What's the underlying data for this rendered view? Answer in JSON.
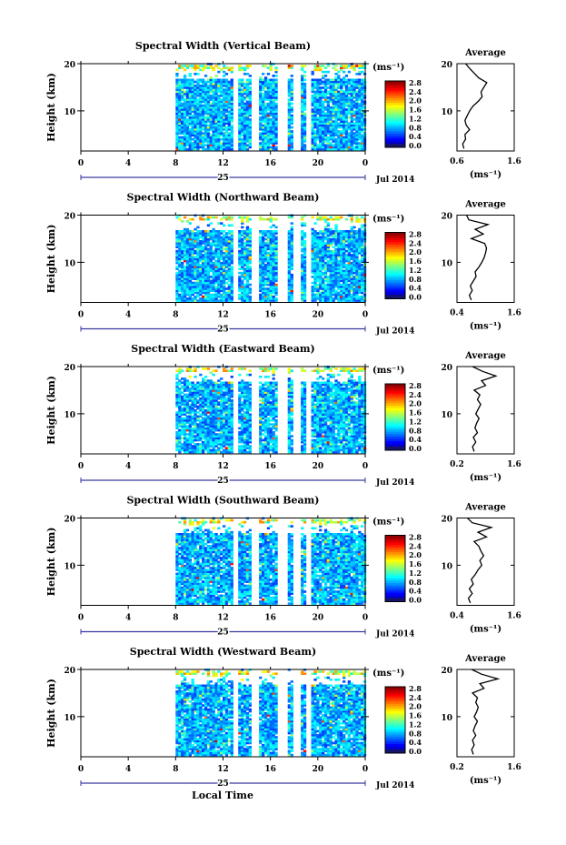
{
  "figure": {
    "x_axis_label": "Local Time",
    "date_label": "Jul 2014",
    "day_label": "25"
  },
  "chart_data": [
    {
      "type": "heatmap",
      "title": "Spectral Width (Vertical Beam)",
      "xlabel": "Local Time",
      "ylabel": "Height (km)",
      "x_ticks": [
        "0",
        "4",
        "8",
        "12",
        "16",
        "20",
        "0"
      ],
      "y_ticks": [
        "20",
        "10"
      ],
      "xlim": [
        0,
        24
      ],
      "ylim": [
        1.5,
        20
      ],
      "data_time_range": [
        8,
        24
      ],
      "gaps": [
        [
          12.8,
          13.2
        ],
        [
          14.3,
          14.9
        ],
        [
          16.5,
          17.3
        ],
        [
          17.9,
          18.4
        ],
        [
          19.0,
          19.4
        ]
      ],
      "colorbar": {
        "unit": "(ms⁻¹)",
        "ticks": [
          "2.8",
          "2.4",
          "2.0",
          "1.6",
          "1.2",
          "0.8",
          "0.4",
          "0.0"
        ],
        "range": [
          0,
          2.8
        ]
      },
      "average": {
        "title": "Average",
        "xlabel": "(ms⁻¹)",
        "x_ticks": [
          "0.6",
          "1.6"
        ],
        "xlim": [
          0.6,
          1.6
        ],
        "y_ticks": [
          "20",
          "10"
        ],
        "profile": [
          [
            2,
            0.72
          ],
          [
            3,
            0.7
          ],
          [
            4,
            0.75
          ],
          [
            5,
            0.74
          ],
          [
            6,
            0.82
          ],
          [
            7,
            0.76
          ],
          [
            8,
            0.74
          ],
          [
            9,
            0.78
          ],
          [
            10,
            0.82
          ],
          [
            11,
            0.88
          ],
          [
            12,
            0.97
          ],
          [
            13,
            1.04
          ],
          [
            14,
            1.02
          ],
          [
            15,
            1.07
          ],
          [
            16,
            1.12
          ],
          [
            17,
            0.98
          ],
          [
            18,
            0.9
          ],
          [
            19,
            0.82
          ],
          [
            20,
            0.75
          ]
        ]
      }
    },
    {
      "type": "heatmap",
      "title": "Spectral Width (Northward Beam)",
      "xlabel": "Local Time",
      "ylabel": "Height (km)",
      "x_ticks": [
        "0",
        "4",
        "8",
        "12",
        "16",
        "20",
        "0"
      ],
      "y_ticks": [
        "20",
        "10"
      ],
      "xlim": [
        0,
        24
      ],
      "ylim": [
        1.5,
        20
      ],
      "data_time_range": [
        8,
        24
      ],
      "gaps": [
        [
          12.8,
          13.2
        ],
        [
          14.3,
          14.9
        ],
        [
          16.5,
          17.3
        ],
        [
          17.9,
          18.4
        ],
        [
          19.0,
          19.4
        ]
      ],
      "colorbar": {
        "unit": "(ms⁻¹)",
        "ticks": [
          "2.8",
          "2.4",
          "2.0",
          "1.6",
          "1.2",
          "0.8",
          "0.4",
          "0.0"
        ],
        "range": [
          0,
          2.8
        ]
      },
      "average": {
        "title": "Average",
        "xlabel": "(ms⁻¹)",
        "x_ticks": [
          "0.4",
          "1.6"
        ],
        "xlim": [
          0.4,
          1.6
        ],
        "y_ticks": [
          "20",
          "10"
        ],
        "profile": [
          [
            2,
            0.7
          ],
          [
            3,
            0.66
          ],
          [
            4,
            0.72
          ],
          [
            5,
            0.68
          ],
          [
            6,
            0.74
          ],
          [
            7,
            0.8
          ],
          [
            8,
            0.78
          ],
          [
            9,
            0.86
          ],
          [
            10,
            0.92
          ],
          [
            11,
            0.97
          ],
          [
            12,
            1.0
          ],
          [
            13,
            1.02
          ],
          [
            14,
            0.98
          ],
          [
            15,
            0.7
          ],
          [
            16,
            0.95
          ],
          [
            17,
            0.78
          ],
          [
            18,
            1.05
          ],
          [
            19,
            0.65
          ],
          [
            20,
            0.6
          ]
        ]
      }
    },
    {
      "type": "heatmap",
      "title": "Spectral Width (Eastward Beam)",
      "xlabel": "Local Time",
      "ylabel": "Height (km)",
      "x_ticks": [
        "0",
        "4",
        "8",
        "12",
        "16",
        "20",
        "0"
      ],
      "y_ticks": [
        "20",
        "10"
      ],
      "xlim": [
        0,
        24
      ],
      "ylim": [
        1.5,
        20
      ],
      "data_time_range": [
        8,
        24
      ],
      "gaps": [
        [
          12.8,
          13.2
        ],
        [
          14.3,
          14.9
        ],
        [
          16.5,
          17.3
        ],
        [
          17.9,
          18.4
        ],
        [
          19.0,
          19.4
        ]
      ],
      "colorbar": {
        "unit": "(ms⁻¹)",
        "ticks": [
          "2.8",
          "2.4",
          "2.0",
          "1.6",
          "1.2",
          "0.8",
          "0.4",
          "0.0"
        ],
        "range": [
          0,
          2.8
        ]
      },
      "average": {
        "title": "Average",
        "xlabel": "(ms⁻¹)",
        "x_ticks": [
          "0.2",
          "1.6"
        ],
        "xlim": [
          0.2,
          1.6
        ],
        "y_ticks": [
          "20",
          "10"
        ],
        "profile": [
          [
            2,
            0.62
          ],
          [
            3,
            0.58
          ],
          [
            4,
            0.66
          ],
          [
            5,
            0.6
          ],
          [
            6,
            0.7
          ],
          [
            7,
            0.64
          ],
          [
            8,
            0.68
          ],
          [
            9,
            0.74
          ],
          [
            10,
            0.66
          ],
          [
            11,
            0.72
          ],
          [
            12,
            0.78
          ],
          [
            13,
            0.7
          ],
          [
            14,
            0.76
          ],
          [
            15,
            0.62
          ],
          [
            16,
            0.9
          ],
          [
            17,
            0.8
          ],
          [
            18,
            1.15
          ],
          [
            19,
            0.82
          ],
          [
            20,
            0.58
          ]
        ]
      }
    },
    {
      "type": "heatmap",
      "title": "Spectral Width (Southward Beam)",
      "xlabel": "Local Time",
      "ylabel": "Height (km)",
      "x_ticks": [
        "0",
        "4",
        "8",
        "12",
        "16",
        "20",
        "0"
      ],
      "y_ticks": [
        "20",
        "10"
      ],
      "xlim": [
        0,
        24
      ],
      "ylim": [
        1.5,
        20
      ],
      "data_time_range": [
        8,
        24
      ],
      "gaps": [
        [
          12.8,
          13.2
        ],
        [
          14.3,
          14.9
        ],
        [
          16.5,
          17.3
        ],
        [
          17.9,
          18.4
        ],
        [
          19.0,
          19.4
        ]
      ],
      "colorbar": {
        "unit": "(ms⁻¹)",
        "ticks": [
          "2.8",
          "2.4",
          "2.0",
          "1.6",
          "1.2",
          "0.8",
          "0.4",
          "0.0"
        ],
        "range": [
          0,
          2.8
        ]
      },
      "average": {
        "title": "Average",
        "xlabel": "(ms⁻¹)",
        "x_ticks": [
          "0.4",
          "1.6"
        ],
        "xlim": [
          0.4,
          1.6
        ],
        "y_ticks": [
          "20",
          "10"
        ],
        "profile": [
          [
            2,
            0.68
          ],
          [
            3,
            0.64
          ],
          [
            4,
            0.72
          ],
          [
            5,
            0.66
          ],
          [
            6,
            0.74
          ],
          [
            7,
            0.7
          ],
          [
            8,
            0.78
          ],
          [
            9,
            0.84
          ],
          [
            10,
            0.92
          ],
          [
            11,
            0.88
          ],
          [
            12,
            0.96
          ],
          [
            13,
            0.9
          ],
          [
            14,
            0.86
          ],
          [
            15,
            0.76
          ],
          [
            16,
            1.02
          ],
          [
            17,
            0.84
          ],
          [
            18,
            1.12
          ],
          [
            19,
            0.72
          ],
          [
            20,
            0.62
          ]
        ]
      }
    },
    {
      "type": "heatmap",
      "title": "Spectral Width (Westward Beam)",
      "xlabel": "Local Time",
      "ylabel": "Height (km)",
      "x_ticks": [
        "0",
        "4",
        "8",
        "12",
        "16",
        "20",
        "0"
      ],
      "y_ticks": [
        "20",
        "10"
      ],
      "xlim": [
        0,
        24
      ],
      "ylim": [
        1.5,
        20
      ],
      "data_time_range": [
        8,
        24
      ],
      "gaps": [
        [
          12.8,
          13.2
        ],
        [
          14.3,
          14.9
        ],
        [
          16.5,
          17.3
        ],
        [
          17.9,
          18.4
        ],
        [
          19.0,
          19.4
        ]
      ],
      "colorbar": {
        "unit": "(ms⁻¹)",
        "ticks": [
          "2.8",
          "2.4",
          "2.0",
          "1.6",
          "1.2",
          "0.8",
          "0.4",
          "0.0"
        ],
        "range": [
          0,
          2.8
        ]
      },
      "average": {
        "title": "Average",
        "xlabel": "(ms⁻¹)",
        "x_ticks": [
          "0.2",
          "1.6"
        ],
        "xlim": [
          0.2,
          1.6
        ],
        "y_ticks": [
          "20",
          "10"
        ],
        "profile": [
          [
            2,
            0.6
          ],
          [
            3,
            0.56
          ],
          [
            4,
            0.62
          ],
          [
            5,
            0.58
          ],
          [
            6,
            0.66
          ],
          [
            7,
            0.6
          ],
          [
            8,
            0.64
          ],
          [
            9,
            0.7
          ],
          [
            10,
            0.62
          ],
          [
            11,
            0.68
          ],
          [
            12,
            0.72
          ],
          [
            13,
            0.66
          ],
          [
            14,
            0.7
          ],
          [
            15,
            0.58
          ],
          [
            16,
            0.86
          ],
          [
            17,
            0.76
          ],
          [
            18,
            1.2
          ],
          [
            19,
            0.8
          ],
          [
            20,
            0.56
          ]
        ]
      }
    }
  ]
}
